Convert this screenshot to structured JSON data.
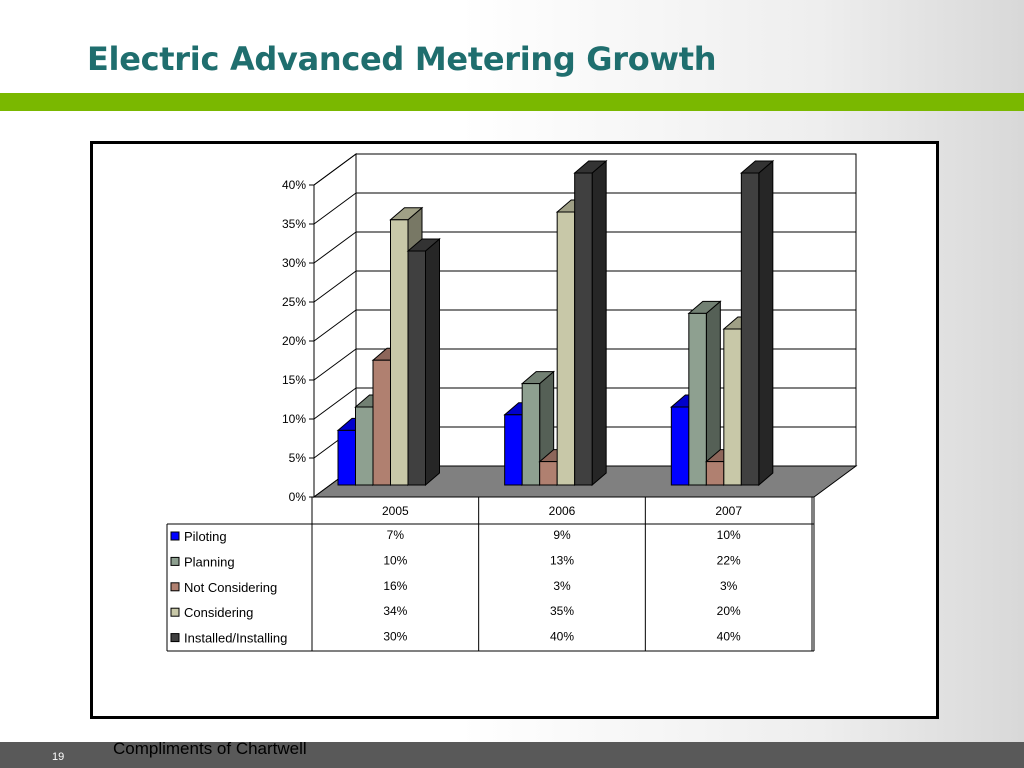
{
  "slide": {
    "title": "Electric Advanced Metering Growth",
    "page_number": "19",
    "credit": "Compliments of Chartwell",
    "colors": {
      "title": "#1f6e6e",
      "accent_bar": "#7ab800",
      "bottom_bar": "#595959"
    }
  },
  "chart_data": {
    "type": "bar",
    "style": "3d-clustered-column-with-data-table",
    "categories": [
      "2005",
      "2006",
      "2007"
    ],
    "series": [
      {
        "name": "Piloting",
        "values": [
          7,
          9,
          10
        ],
        "labels": [
          "7%",
          "9%",
          "10%"
        ],
        "color": "#0000ff"
      },
      {
        "name": "Planning",
        "values": [
          10,
          13,
          22
        ],
        "labels": [
          "10%",
          "13%",
          "22%"
        ],
        "color": "#8ea090"
      },
      {
        "name": "Not Considering",
        "values": [
          16,
          3,
          3
        ],
        "labels": [
          "16%",
          "3%",
          "3%"
        ],
        "color": "#b08070"
      },
      {
        "name": "Considering",
        "values": [
          34,
          35,
          20
        ],
        "labels": [
          "34%",
          "35%",
          "20%"
        ],
        "color": "#c8c8a8"
      },
      {
        "name": "Installed/Installing",
        "values": [
          30,
          40,
          40
        ],
        "labels": [
          "30%",
          "40%",
          "40%"
        ],
        "color": "#404040"
      }
    ],
    "y_ticks": [
      "0%",
      "5%",
      "10%",
      "15%",
      "20%",
      "25%",
      "30%",
      "35%",
      "40%"
    ],
    "ylim": [
      0,
      40
    ],
    "grid": true,
    "legend": "data-table-below"
  }
}
